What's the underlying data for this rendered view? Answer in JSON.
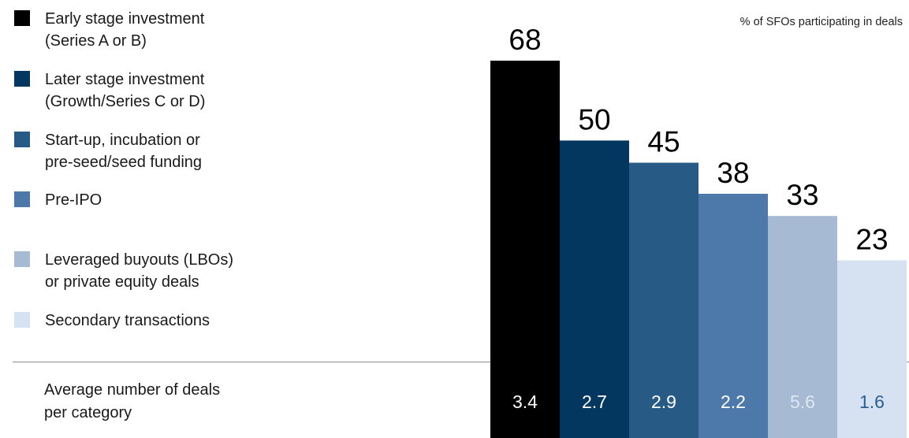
{
  "chart_data": {
    "type": "bar",
    "subtitle": "% of SFOs participating in deals",
    "categories": [
      "Early stage investment\n(Series A or B)",
      "Later stage investment\n(Growth/Series C or D)",
      "Start-up, incubation or\npre-seed/seed funding",
      "Pre-IPO",
      "Leveraged buyouts (LBOs)\nor private equity deals",
      "Secondary transactions"
    ],
    "values": [
      68,
      50,
      45,
      38,
      33,
      23
    ],
    "value_labels": [
      "68",
      "50",
      "45",
      "38",
      "33",
      "23"
    ],
    "secondary_label": "Average number of deals\nper category",
    "secondary_values": [
      "3.4",
      "2.7",
      "2.9",
      "2.2",
      "5.6",
      "1.6"
    ],
    "colors": [
      "#000000",
      "#03375f",
      "#275a84",
      "#4d79aa",
      "#a6bad3",
      "#d6e2f1"
    ],
    "secondary_text_colors": [
      "#ffffff",
      "#ffffff",
      "#ffffff",
      "#ffffff",
      "#dfe7f1",
      "#2c5f90"
    ],
    "ylim": [
      0,
      68
    ],
    "legend_position": "left",
    "grid": false
  }
}
